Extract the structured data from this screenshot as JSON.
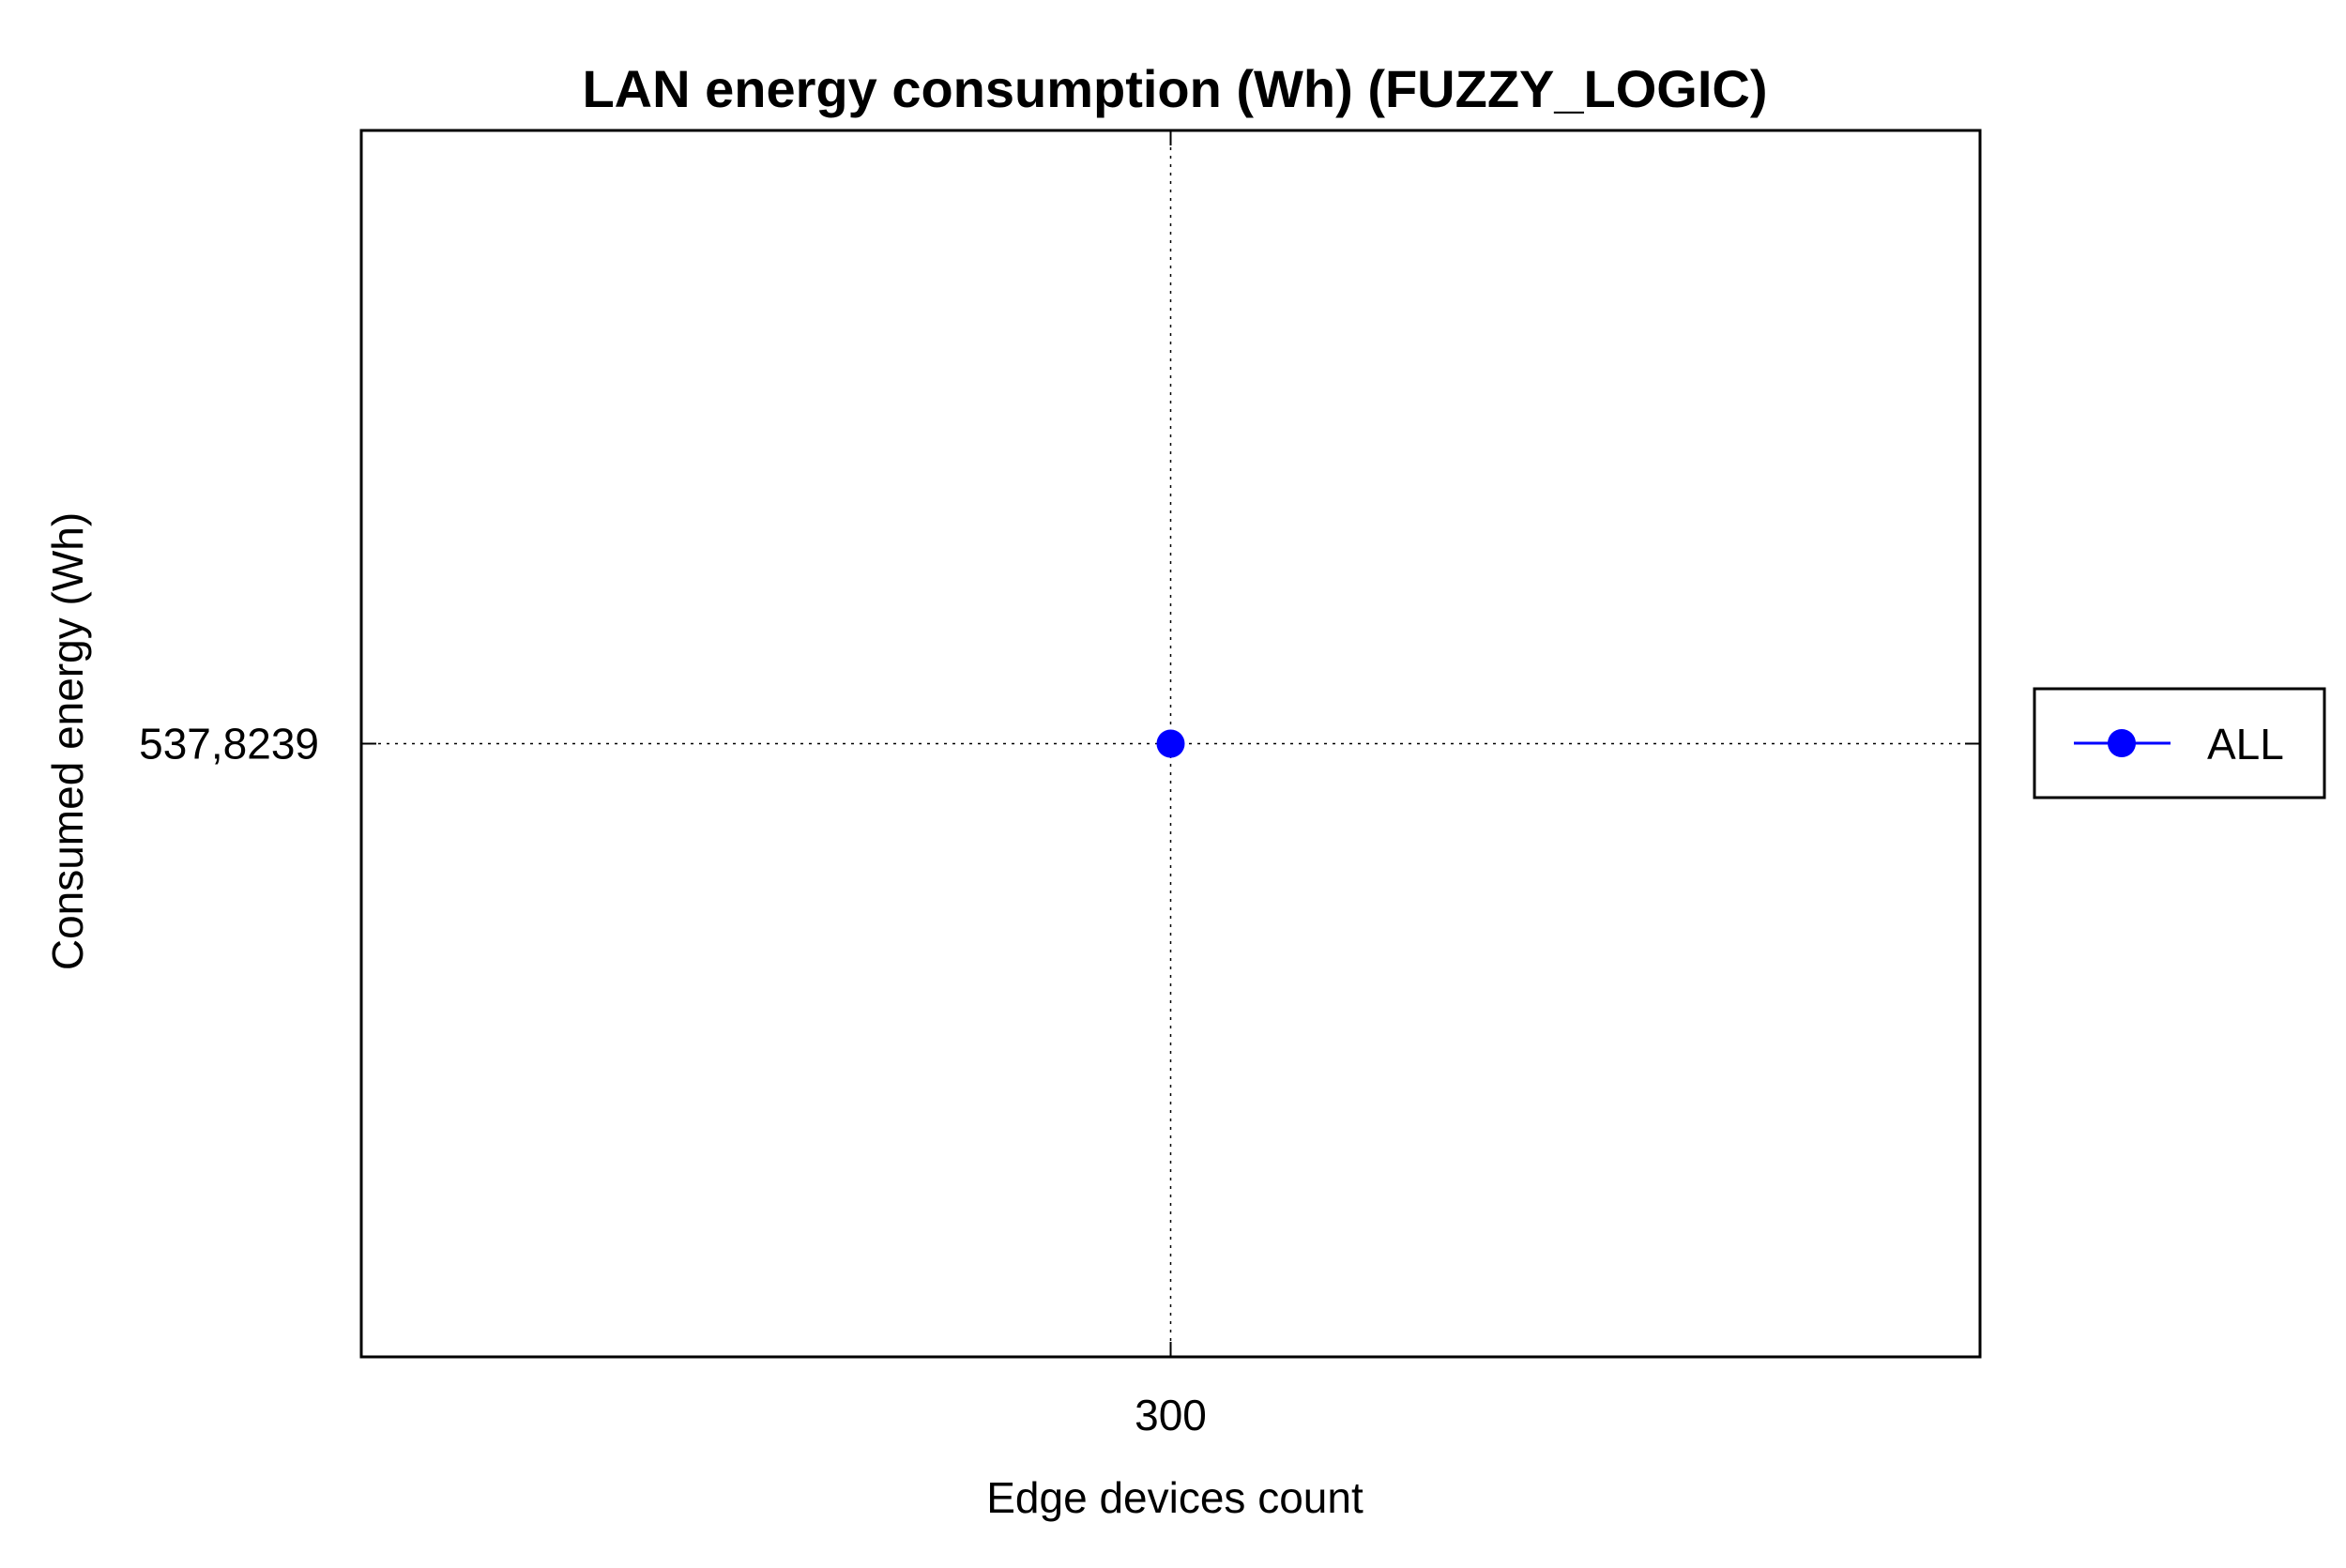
{
  "chart_data": {
    "type": "line",
    "title": "LAN energy consumption (Wh) (FUZZY_LOGIC)",
    "xlabel": "Edge devices count",
    "ylabel": "Consumed energy (Wh)",
    "x_ticks": [
      "300"
    ],
    "y_ticks": [
      "537,8239"
    ],
    "x": [
      300
    ],
    "series": [
      {
        "name": "ALL",
        "values": [
          537.8239
        ],
        "color": "#0000ff",
        "marker": "circle"
      }
    ],
    "grid": true,
    "legend_position": "right"
  }
}
